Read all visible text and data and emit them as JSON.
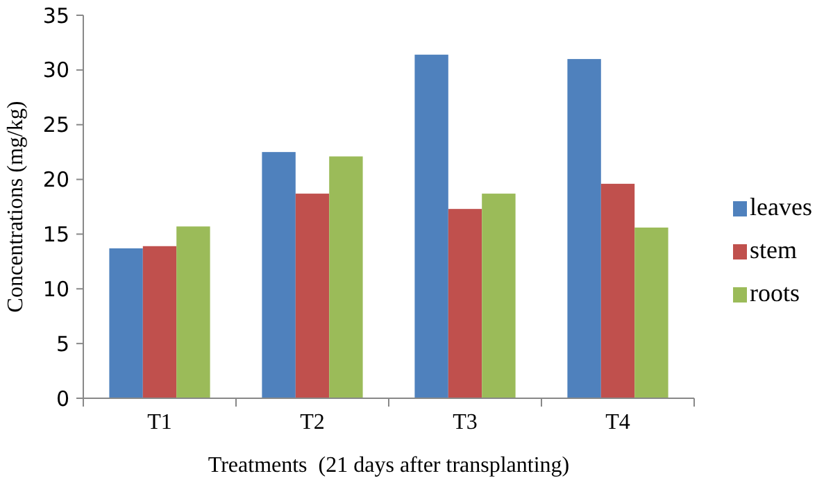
{
  "chart_data": {
    "type": "bar",
    "xlabel": "Treatments  (21 days after transplanting)",
    "ylabel": "Concentrations (mg/kg)",
    "categories": [
      "T1",
      "T2",
      "T3",
      "T4"
    ],
    "series": [
      {
        "name": "leaves",
        "color": "#4f81bd",
        "values": [
          13.7,
          22.5,
          31.4,
          31.0
        ]
      },
      {
        "name": "stem",
        "color": "#c0504d",
        "values": [
          13.9,
          18.7,
          17.3,
          19.6
        ]
      },
      {
        "name": "roots",
        "color": "#9bbb59",
        "values": [
          15.7,
          22.1,
          18.7,
          15.6
        ]
      }
    ],
    "ylim": [
      0,
      35
    ],
    "yticks": [
      0,
      5,
      10,
      15,
      20,
      25,
      30,
      35
    ],
    "grid": false,
    "legend": "right"
  }
}
